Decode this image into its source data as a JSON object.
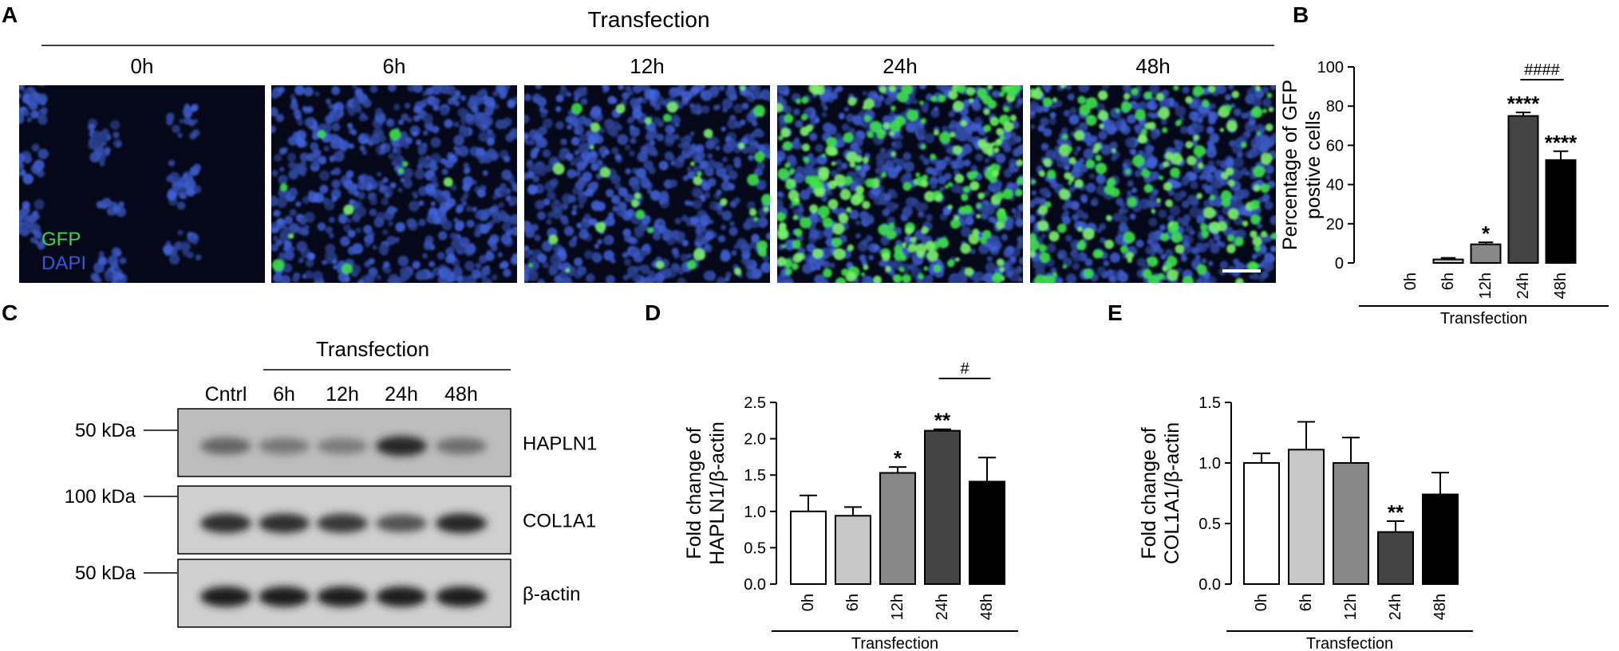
{
  "panel_letters": [
    "A",
    "B",
    "C",
    "D",
    "E"
  ],
  "panel_a": {
    "title": "Transfection",
    "timepoints": [
      "0h",
      "6h",
      "12h",
      "24h",
      "48h"
    ],
    "legend": [
      {
        "text": "GFP",
        "color": "#33dd44"
      },
      {
        "text": "DAPI",
        "color": "#3a5ad8"
      }
    ],
    "gfp_density": [
      0.0,
      0.03,
      0.12,
      0.75,
      0.52
    ]
  },
  "panel_c": {
    "group_label": "Transfection",
    "lanes": [
      "Cntrl",
      "6h",
      "12h",
      "24h",
      "48h"
    ],
    "rows": [
      {
        "marker": "50 kDa",
        "protein": "HAPLN1",
        "intensity": [
          0.55,
          0.45,
          0.42,
          0.9,
          0.5
        ]
      },
      {
        "marker": "100 kDa",
        "protein": "COL1A1",
        "intensity": [
          0.85,
          0.85,
          0.8,
          0.65,
          0.9
        ]
      },
      {
        "marker": "50 kDa",
        "protein": "β-actin",
        "intensity": [
          0.95,
          0.95,
          0.95,
          0.95,
          0.95
        ]
      }
    ]
  },
  "chart_data": [
    {
      "panel": "B",
      "type": "bar",
      "categories": [
        "0h",
        "6h",
        "12h",
        "24h",
        "48h"
      ],
      "values": [
        0,
        1.8,
        9.5,
        75,
        52.5
      ],
      "errors": [
        0,
        0.8,
        1.0,
        1.8,
        4.5
      ],
      "colors": [
        "#ffffff",
        "#c8c8c8",
        "#888888",
        "#444444",
        "#000000"
      ],
      "annotations": [
        "",
        "",
        "*",
        "****",
        "****"
      ],
      "bracket": {
        "from": 3,
        "to": 4,
        "label": "####"
      },
      "ylabel": "Percentage of GFP postive cells",
      "xlabel": "Transfection",
      "ylim": [
        0,
        100
      ],
      "yticks": [
        0,
        20,
        40,
        60,
        80,
        100
      ]
    },
    {
      "panel": "D",
      "type": "bar",
      "categories": [
        "0h",
        "6h",
        "12h",
        "24h",
        "48h"
      ],
      "values": [
        1.0,
        0.94,
        1.53,
        2.11,
        1.41
      ],
      "errors": [
        0.22,
        0.12,
        0.08,
        0.02,
        0.33
      ],
      "colors": [
        "#ffffff",
        "#c8c8c8",
        "#888888",
        "#444444",
        "#000000"
      ],
      "annotations": [
        "",
        "",
        "*",
        "**",
        ""
      ],
      "bracket": {
        "from": 3,
        "to": 4,
        "label": "#"
      },
      "ylabel": "Fold change of HAPLN1/β-actin",
      "xlabel": "Transfection",
      "ylim": [
        0,
        2.5
      ],
      "yticks": [
        0.0,
        0.5,
        1.0,
        1.5,
        2.0,
        2.5
      ]
    },
    {
      "panel": "E",
      "type": "bar",
      "categories": [
        "0h",
        "6h",
        "12h",
        "24h",
        "48h"
      ],
      "values": [
        1.0,
        1.11,
        1.0,
        0.43,
        0.74
      ],
      "errors": [
        0.08,
        0.23,
        0.21,
        0.09,
        0.18
      ],
      "colors": [
        "#ffffff",
        "#c8c8c8",
        "#888888",
        "#444444",
        "#000000"
      ],
      "annotations": [
        "",
        "",
        "",
        "**",
        ""
      ],
      "bracket": null,
      "ylabel": "Fold change of COL1A1/β-actin",
      "xlabel": "Transfection",
      "ylim": [
        0,
        1.5
      ],
      "yticks": [
        0.0,
        0.5,
        1.0,
        1.5
      ]
    }
  ]
}
